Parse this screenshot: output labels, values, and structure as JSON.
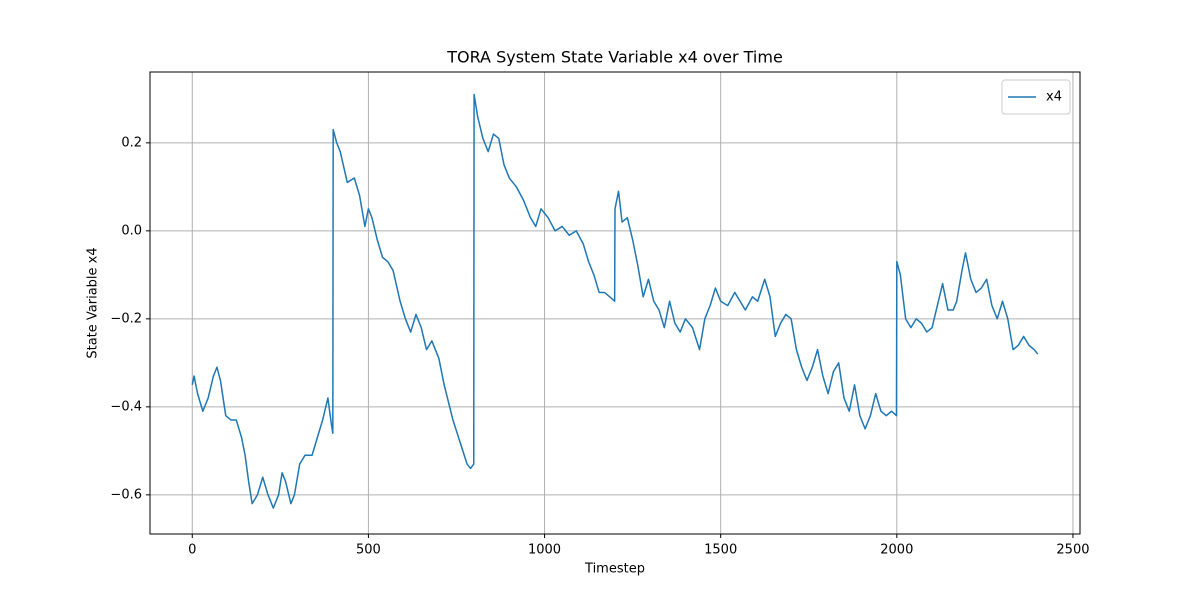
{
  "chart_data": {
    "type": "line",
    "title": "TORA System State Variable x4 over Time",
    "x_label": "Timestep",
    "y_label": "State Variable x4",
    "xlim": [
      -120,
      2520
    ],
    "ylim": [
      -0.689,
      0.361
    ],
    "xticks": [
      0,
      500,
      1000,
      1500,
      2000,
      2500
    ],
    "yticks": [
      {
        "value": -0.6,
        "label": "−0.6"
      },
      {
        "value": -0.4,
        "label": "−0.4"
      },
      {
        "value": -0.2,
        "label": "−0.2"
      },
      {
        "value": 0,
        "label": "0.0"
      },
      {
        "value": 0.2,
        "label": "0.2"
      }
    ],
    "grid": true,
    "legend": "upper right",
    "x": [
      0,
      5,
      15,
      30,
      45,
      60,
      70,
      80,
      95,
      110,
      125,
      140,
      150,
      160,
      170,
      185,
      200,
      215,
      230,
      245,
      255,
      265,
      280,
      290,
      305,
      320,
      340,
      355,
      370,
      385,
      395,
      399,
      400,
      410,
      420,
      440,
      460,
      475,
      490,
      500,
      510,
      525,
      540,
      555,
      570,
      590,
      605,
      620,
      635,
      650,
      665,
      680,
      700,
      715,
      740,
      760,
      780,
      790,
      799,
      800,
      810,
      825,
      840,
      855,
      870,
      885,
      900,
      920,
      940,
      960,
      975,
      990,
      1010,
      1030,
      1050,
      1070,
      1090,
      1110,
      1125,
      1140,
      1155,
      1170,
      1185,
      1199,
      1200,
      1210,
      1220,
      1235,
      1250,
      1265,
      1280,
      1295,
      1310,
      1325,
      1340,
      1355,
      1370,
      1385,
      1400,
      1420,
      1440,
      1455,
      1470,
      1485,
      1500,
      1520,
      1540,
      1555,
      1570,
      1590,
      1605,
      1625,
      1640,
      1655,
      1670,
      1685,
      1700,
      1715,
      1730,
      1745,
      1760,
      1775,
      1790,
      1805,
      1820,
      1835,
      1850,
      1865,
      1880,
      1895,
      1910,
      1925,
      1940,
      1955,
      1970,
      1985,
      1999,
      2000,
      2010,
      2025,
      2040,
      2055,
      2070,
      2085,
      2100,
      2115,
      2130,
      2145,
      2160,
      2170,
      2185,
      2195,
      2210,
      2225,
      2240,
      2255,
      2270,
      2285,
      2300,
      2315,
      2330,
      2345,
      2360,
      2375,
      2390,
      2400
    ],
    "series": [
      {
        "name": "x4",
        "color": "#1f77b4",
        "values": [
          -0.35,
          -0.33,
          -0.37,
          -0.41,
          -0.38,
          -0.33,
          -0.31,
          -0.34,
          -0.42,
          -0.43,
          -0.43,
          -0.47,
          -0.51,
          -0.57,
          -0.62,
          -0.6,
          -0.56,
          -0.6,
          -0.63,
          -0.6,
          -0.55,
          -0.57,
          -0.62,
          -0.6,
          -0.53,
          -0.51,
          -0.51,
          -0.47,
          -0.43,
          -0.38,
          -0.44,
          -0.46,
          0.23,
          0.2,
          0.18,
          0.11,
          0.12,
          0.08,
          0.01,
          0.05,
          0.03,
          -0.02,
          -0.06,
          -0.07,
          -0.09,
          -0.16,
          -0.2,
          -0.23,
          -0.19,
          -0.22,
          -0.27,
          -0.25,
          -0.29,
          -0.35,
          -0.43,
          -0.48,
          -0.53,
          -0.54,
          -0.53,
          0.31,
          0.26,
          0.21,
          0.18,
          0.22,
          0.21,
          0.15,
          0.12,
          0.1,
          0.07,
          0.03,
          0.01,
          0.05,
          0.03,
          0.0,
          0.01,
          -0.01,
          0.0,
          -0.03,
          -0.07,
          -0.1,
          -0.14,
          -0.14,
          -0.15,
          -0.16,
          0.05,
          0.09,
          0.02,
          0.03,
          -0.02,
          -0.08,
          -0.15,
          -0.11,
          -0.16,
          -0.18,
          -0.22,
          -0.16,
          -0.21,
          -0.23,
          -0.2,
          -0.22,
          -0.27,
          -0.2,
          -0.17,
          -0.13,
          -0.16,
          -0.17,
          -0.14,
          -0.16,
          -0.18,
          -0.15,
          -0.16,
          -0.11,
          -0.15,
          -0.24,
          -0.21,
          -0.19,
          -0.2,
          -0.27,
          -0.31,
          -0.34,
          -0.31,
          -0.27,
          -0.33,
          -0.37,
          -0.32,
          -0.3,
          -0.38,
          -0.41,
          -0.35,
          -0.42,
          -0.45,
          -0.42,
          -0.37,
          -0.41,
          -0.42,
          -0.41,
          -0.42,
          -0.07,
          -0.1,
          -0.2,
          -0.22,
          -0.2,
          -0.21,
          -0.23,
          -0.22,
          -0.17,
          -0.12,
          -0.18,
          -0.18,
          -0.16,
          -0.09,
          -0.05,
          -0.11,
          -0.14,
          -0.13,
          -0.11,
          -0.17,
          -0.2,
          -0.16,
          -0.2,
          -0.27,
          -0.26,
          -0.24,
          -0.26,
          -0.27,
          -0.28
        ]
      }
    ]
  }
}
